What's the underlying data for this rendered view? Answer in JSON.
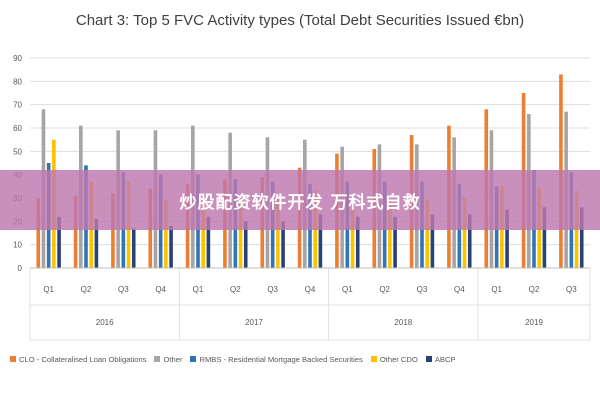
{
  "chart_data": {
    "type": "bar",
    "title": "Chart 3: Top 5 FVC Activity types (Total Debt Securities Issued €bn)",
    "categories": [
      "Q1",
      "Q2",
      "Q3",
      "Q4",
      "Q1",
      "Q2",
      "Q3",
      "Q4",
      "Q1",
      "Q2",
      "Q3",
      "Q4",
      "Q1",
      "Q2",
      "Q3"
    ],
    "groups": [
      {
        "label": "2016",
        "count": 4
      },
      {
        "label": "2017",
        "count": 4
      },
      {
        "label": "2018",
        "count": 4
      },
      {
        "label": "2019",
        "count": 3
      }
    ],
    "ylim": [
      0,
      90
    ],
    "yticks": [
      0,
      10,
      20,
      30,
      40,
      50,
      60,
      70,
      80,
      90
    ],
    "grid": true,
    "legend_position": "bottom",
    "series": [
      {
        "name": "CLO - Collateralised Loan Obligations",
        "color": "#ED7D31",
        "values": [
          30,
          31,
          32,
          34,
          36,
          38,
          39,
          43,
          49,
          51,
          57,
          61,
          68,
          75,
          83
        ]
      },
      {
        "name": "Other",
        "color": "#A5A5A5",
        "values": [
          68,
          61,
          59,
          59,
          61,
          58,
          56,
          55,
          52,
          53,
          53,
          56,
          59,
          66,
          67
        ]
      },
      {
        "name": "RMBS - Residential Mortgage Backed Securities",
        "color": "#2E75B6",
        "values": [
          45,
          44,
          41,
          40,
          40,
          38,
          37,
          36,
          37,
          37,
          37,
          36,
          35,
          42,
          41
        ]
      },
      {
        "name": "Other CDO",
        "color": "#FFC000",
        "values": [
          55,
          37,
          37,
          29,
          29,
          30,
          30,
          33,
          29,
          29,
          29,
          30,
          35,
          34,
          33
        ]
      },
      {
        "name": "ABCP",
        "color": "#264478",
        "values": [
          22,
          21,
          17,
          18,
          22,
          20,
          20,
          23,
          22,
          22,
          23,
          23,
          25,
          26,
          26
        ]
      }
    ]
  },
  "overlay": {
    "text": "炒股配资软件开发 万科式自救"
  }
}
